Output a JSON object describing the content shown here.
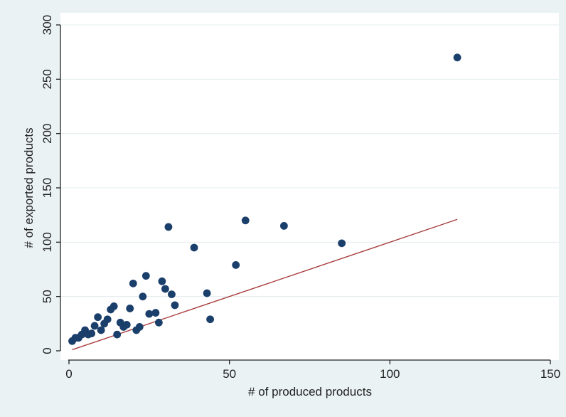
{
  "chart_data": {
    "type": "scatter",
    "title": "",
    "xlabel": "# of produced products",
    "ylabel": "# of exported products",
    "xlim": [
      0,
      150
    ],
    "ylim": [
      0,
      300
    ],
    "xticks": [
      0,
      50,
      100,
      150
    ],
    "yticks": [
      0,
      50,
      100,
      150,
      200,
      250,
      300
    ],
    "grid": "horizontal",
    "legend": "none",
    "colors": {
      "background": "#eaf2f3",
      "plot_area": "#ffffff",
      "point": "#1b3f6b",
      "line": "#a83c3c",
      "grid": "#e3ecee",
      "axis": "#222222"
    },
    "series": [
      {
        "type": "scatter",
        "points": [
          [
            1,
            9
          ],
          [
            2,
            12
          ],
          [
            3,
            12
          ],
          [
            4,
            15
          ],
          [
            5,
            19
          ],
          [
            6,
            15
          ],
          [
            7,
            16
          ],
          [
            8,
            23
          ],
          [
            9,
            31
          ],
          [
            10,
            19
          ],
          [
            11,
            25
          ],
          [
            12,
            29
          ],
          [
            13,
            38
          ],
          [
            14,
            41
          ],
          [
            15,
            15
          ],
          [
            16,
            26
          ],
          [
            17,
            22
          ],
          [
            18,
            24
          ],
          [
            19,
            39
          ],
          [
            20,
            62
          ],
          [
            21,
            19
          ],
          [
            22,
            22
          ],
          [
            23,
            50
          ],
          [
            24,
            69
          ],
          [
            25,
            34
          ],
          [
            27,
            35
          ],
          [
            28,
            26
          ],
          [
            29,
            64
          ],
          [
            30,
            57
          ],
          [
            31,
            114
          ],
          [
            32,
            52
          ],
          [
            33,
            42
          ],
          [
            39,
            95
          ],
          [
            43,
            53
          ],
          [
            44,
            29
          ],
          [
            52,
            79
          ],
          [
            55,
            120
          ],
          [
            67,
            115
          ],
          [
            85,
            99
          ],
          [
            121,
            270
          ]
        ]
      },
      {
        "type": "line",
        "points": [
          [
            1,
            1
          ],
          [
            121,
            121
          ]
        ]
      }
    ]
  }
}
